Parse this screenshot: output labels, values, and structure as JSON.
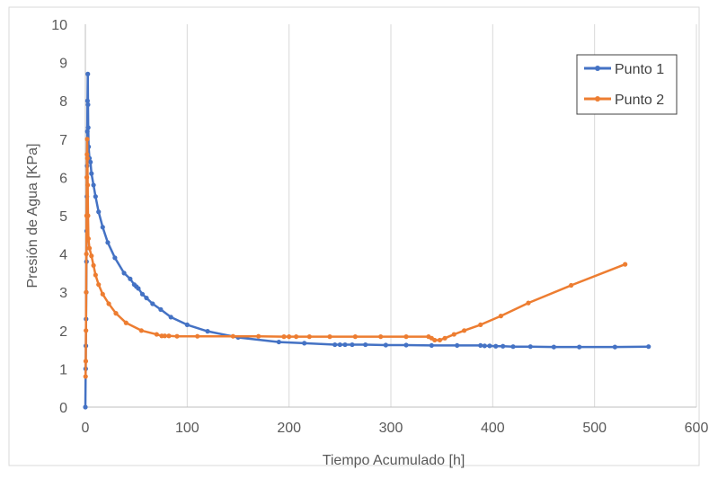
{
  "chart_data": {
    "type": "line",
    "title": "",
    "xlabel": "Tiempo Acumulado [h]",
    "ylabel": "Presión de Agua [KPa]",
    "xlim": [
      0,
      600
    ],
    "ylim": [
      0,
      10
    ],
    "x_ticks": [
      0,
      100,
      200,
      300,
      400,
      500,
      600
    ],
    "y_ticks": [
      0,
      1,
      2,
      3,
      4,
      5,
      6,
      7,
      8,
      9,
      10
    ],
    "x_tick_labels": [
      "0",
      "100",
      "200",
      "300",
      "400",
      "500",
      "600"
    ],
    "y_tick_labels": [
      "0",
      "1",
      "2",
      "3",
      "4",
      "5",
      "6",
      "7",
      "8",
      "9",
      "10"
    ],
    "grid": "vertical",
    "legend_position": "top-right",
    "series": [
      {
        "name": "Punto 1",
        "color": "#4472C4",
        "points": [
          [
            0,
            0
          ],
          [
            0.3,
            1.0
          ],
          [
            0.5,
            1.6
          ],
          [
            0.7,
            2.3
          ],
          [
            0.9,
            3.0
          ],
          [
            1.1,
            3.8
          ],
          [
            1.3,
            4.6
          ],
          [
            1.5,
            5.5
          ],
          [
            1.7,
            6.3
          ],
          [
            1.9,
            7.2
          ],
          [
            2.1,
            8.0
          ],
          [
            2.4,
            8.7
          ],
          [
            2.6,
            7.9
          ],
          [
            2.8,
            7.3
          ],
          [
            3.2,
            6.8
          ],
          [
            4,
            6.5
          ],
          [
            5,
            6.4
          ],
          [
            6,
            6.1
          ],
          [
            8,
            5.8
          ],
          [
            10,
            5.5
          ],
          [
            13,
            5.1
          ],
          [
            17,
            4.7
          ],
          [
            22,
            4.3
          ],
          [
            29,
            3.9
          ],
          [
            38,
            3.5
          ],
          [
            44,
            3.35
          ],
          [
            48,
            3.2
          ],
          [
            50,
            3.15
          ],
          [
            52,
            3.1
          ],
          [
            56,
            2.95
          ],
          [
            60,
            2.85
          ],
          [
            66,
            2.7
          ],
          [
            74,
            2.55
          ],
          [
            84,
            2.35
          ],
          [
            100,
            2.15
          ],
          [
            120,
            1.98
          ],
          [
            150,
            1.82
          ],
          [
            190,
            1.7
          ],
          [
            215,
            1.67
          ],
          [
            245,
            1.63
          ],
          [
            250,
            1.63
          ],
          [
            255,
            1.63
          ],
          [
            262,
            1.63
          ],
          [
            275,
            1.63
          ],
          [
            295,
            1.62
          ],
          [
            315,
            1.62
          ],
          [
            340,
            1.61
          ],
          [
            365,
            1.61
          ],
          [
            388,
            1.61
          ],
          [
            392,
            1.6
          ],
          [
            397,
            1.6
          ],
          [
            403,
            1.59
          ],
          [
            410,
            1.59
          ],
          [
            420,
            1.58
          ],
          [
            437,
            1.58
          ],
          [
            460,
            1.57
          ],
          [
            485,
            1.57
          ],
          [
            520,
            1.57
          ],
          [
            553,
            1.58
          ]
        ]
      },
      {
        "name": "Punto 2",
        "color": "#ED7D31",
        "points": [
          [
            0.2,
            0.8
          ],
          [
            0.4,
            1.2
          ],
          [
            0.6,
            2.0
          ],
          [
            0.8,
            3.0
          ],
          [
            1.0,
            4.0
          ],
          [
            1.2,
            5.0
          ],
          [
            1.4,
            6.0
          ],
          [
            1.6,
            6.6
          ],
          [
            1.8,
            7.0
          ],
          [
            2.0,
            6.5
          ],
          [
            2.3,
            5.8
          ],
          [
            2.6,
            5.0
          ],
          [
            3.0,
            4.4
          ],
          [
            4,
            4.15
          ],
          [
            6,
            3.95
          ],
          [
            8,
            3.7
          ],
          [
            10,
            3.45
          ],
          [
            13,
            3.2
          ],
          [
            17,
            2.95
          ],
          [
            23,
            2.7
          ],
          [
            30,
            2.45
          ],
          [
            40,
            2.2
          ],
          [
            55,
            2.0
          ],
          [
            70,
            1.9
          ],
          [
            75,
            1.86
          ],
          [
            78,
            1.86
          ],
          [
            82,
            1.86
          ],
          [
            90,
            1.85
          ],
          [
            110,
            1.85
          ],
          [
            145,
            1.85
          ],
          [
            170,
            1.85
          ],
          [
            195,
            1.84
          ],
          [
            200,
            1.84
          ],
          [
            207,
            1.84
          ],
          [
            220,
            1.84
          ],
          [
            240,
            1.84
          ],
          [
            265,
            1.84
          ],
          [
            290,
            1.84
          ],
          [
            315,
            1.84
          ],
          [
            337,
            1.84
          ],
          [
            340,
            1.8
          ],
          [
            343,
            1.75
          ],
          [
            348,
            1.75
          ],
          [
            353,
            1.8
          ],
          [
            362,
            1.9
          ],
          [
            372,
            2.0
          ],
          [
            388,
            2.15
          ],
          [
            408,
            2.38
          ],
          [
            435,
            2.72
          ],
          [
            477,
            3.18
          ],
          [
            530,
            3.73
          ]
        ]
      }
    ]
  }
}
